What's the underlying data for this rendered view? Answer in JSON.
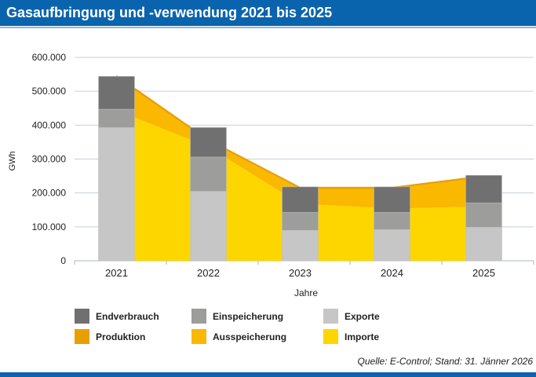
{
  "header": {
    "title": "Gasaufbringung und -verwendung 2021 bis 2025"
  },
  "source": "Quelle: E-Control; Stand: 31. Jänner 2026",
  "chart_data": {
    "type": "bar",
    "title": "Gasaufbringung und -verwendung 2021 bis 2025",
    "xlabel": "Jahre",
    "ylabel": "GWh",
    "ylim": [
      0,
      600000
    ],
    "yticks": [
      "0",
      "100.000",
      "200.000",
      "300.000",
      "400.000",
      "500.000",
      "600.000"
    ],
    "categories": [
      "2021",
      "2022",
      "2023",
      "2024",
      "2025"
    ],
    "grid": true,
    "legend_position": "bottom",
    "bar_series": [
      {
        "name": "Exporte",
        "color": "#c6c6c6",
        "values": [
          393000,
          205000,
          90000,
          92000,
          99000
        ]
      },
      {
        "name": "Einspeicherung",
        "color": "#9d9d9b",
        "values": [
          54000,
          101000,
          53000,
          51000,
          72000
        ]
      },
      {
        "name": "Endverbrauch",
        "color": "#707070",
        "values": [
          97000,
          87000,
          75000,
          75000,
          81000
        ]
      }
    ],
    "area_series": [
      {
        "name": "Importe",
        "color": "#fdd600",
        "values": [
          444000,
          336000,
          168000,
          154000,
          160000
        ]
      },
      {
        "name": "Ausspeicherung",
        "color": "#fab800",
        "values": [
          96000,
          16000,
          44000,
          58000,
          86000
        ]
      },
      {
        "name": "Produktion",
        "color": "#e8a000",
        "values": [
          8000,
          7000,
          6000,
          6000,
          6000
        ]
      }
    ]
  },
  "legend": [
    {
      "label": "Endverbrauch",
      "color": "#707070"
    },
    {
      "label": "Einspeicherung",
      "color": "#9d9d9b"
    },
    {
      "label": "Exporte",
      "color": "#c6c6c6"
    },
    {
      "label": "Produktion",
      "color": "#e8a000"
    },
    {
      "label": "Ausspeicherung",
      "color": "#fab800"
    },
    {
      "label": "Importe",
      "color": "#fdd600"
    }
  ]
}
